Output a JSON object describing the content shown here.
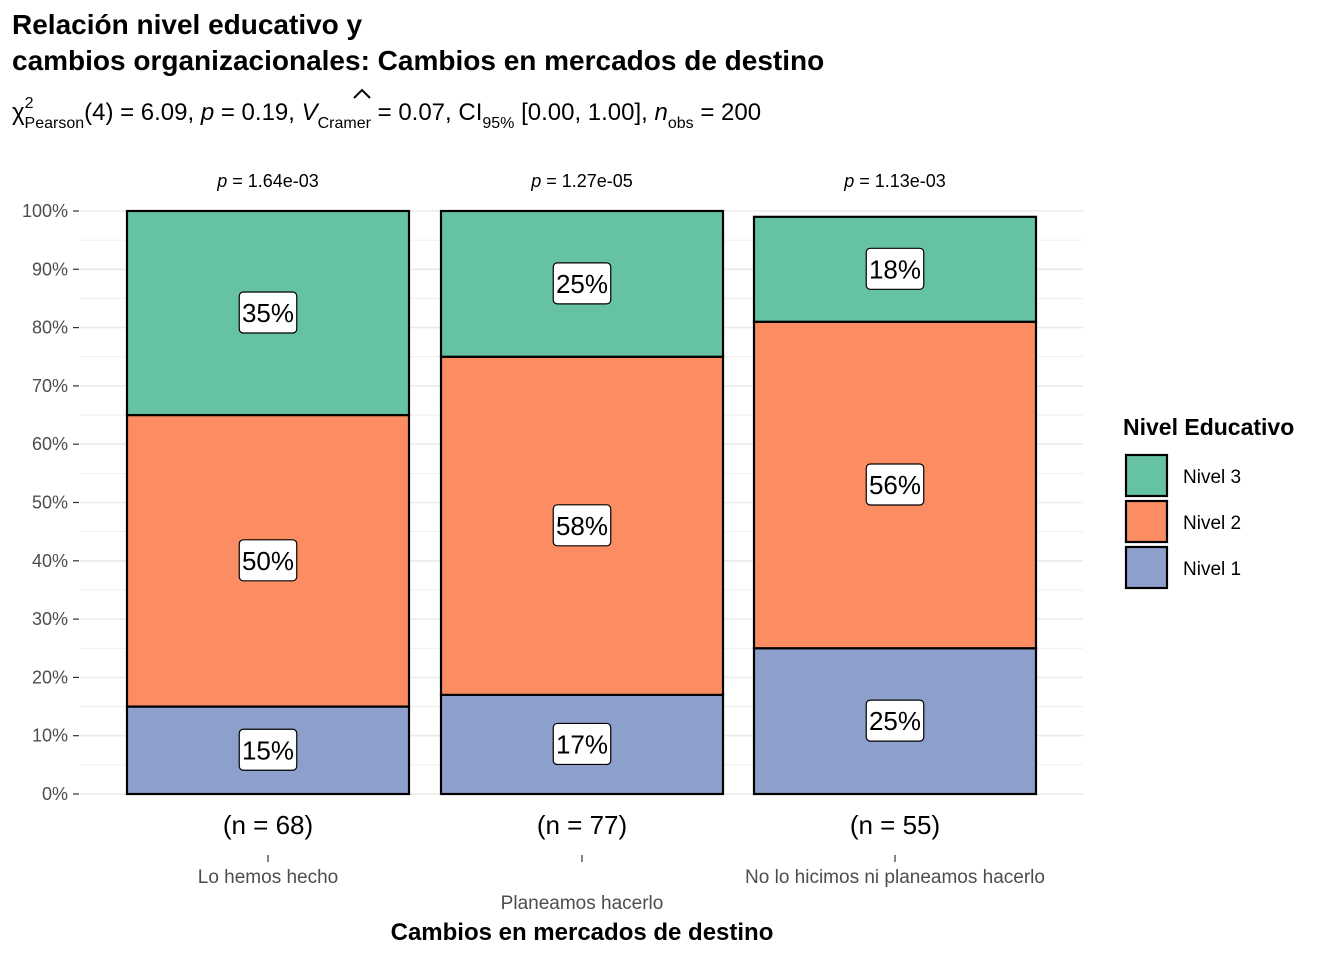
{
  "title_line1": "Relación nivel educativo y",
  "title_line2": "cambios organizacionales: Cambios en mercados de destino",
  "subtitle": {
    "chi": "χ",
    "chi_sup": "2",
    "chi_sub": "Pearson",
    "df": "(4) = 6.09, ",
    "p_sym": "p",
    "p_val": " = 0.19, ",
    "v_sym": "V",
    "v_sub": "Cramer",
    "v_val": " = 0.07, CI",
    "ci_sub": "95%",
    "ci_val": " [0.00, 1.00], ",
    "n_sym": "n",
    "n_sub": "obs",
    "n_val": " = 200"
  },
  "chart_data": {
    "type": "bar",
    "stacked": true,
    "percent": true,
    "categories": [
      "Lo hemos hecho",
      "Planeamos hacerlo",
      "No lo hicimos ni planeamos hacerlo"
    ],
    "counts": [
      "(n = 68)",
      "(n = 77)",
      "(n = 55)"
    ],
    "p_values": [
      "1.64e-03",
      "1.27e-05",
      "1.13e-03"
    ],
    "p_prefix": "p",
    "series": [
      {
        "name": "Nivel 1",
        "color": "#8DA0CB",
        "values": [
          15,
          17,
          25
        ],
        "labels": [
          "15%",
          "17%",
          "25%"
        ]
      },
      {
        "name": "Nivel 2",
        "color": "#FC8D62",
        "values": [
          50,
          58,
          56
        ],
        "labels": [
          "50%",
          "58%",
          "56%"
        ]
      },
      {
        "name": "Nivel 3",
        "color": "#66C2A5",
        "values": [
          35,
          25,
          18
        ],
        "labels": [
          "35%",
          "25%",
          "18%"
        ]
      }
    ],
    "ylim": [
      0,
      100
    ],
    "y_ticks": [
      "0%",
      "10%",
      "20%",
      "30%",
      "40%",
      "50%",
      "60%",
      "70%",
      "80%",
      "90%",
      "100%"
    ],
    "xlabel": "Cambios en mercados de destino",
    "legend_title": "Nivel Educativo",
    "legend_order": [
      "Nivel 3",
      "Nivel 2",
      "Nivel 1"
    ],
    "legend_position": "right",
    "grid": true
  }
}
